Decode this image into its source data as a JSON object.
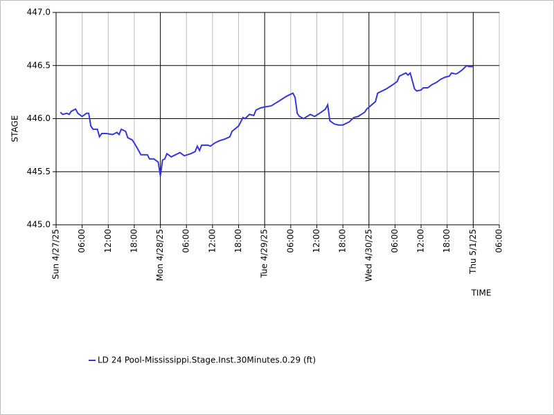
{
  "chart_data": {
    "type": "line",
    "y_label": "STAGE",
    "x_label": "TIME",
    "xlim": [
      "2025-04-27T00:00",
      "2025-05-01T06:00"
    ],
    "xticks": [
      {
        "value": "2025-04-27T00:00",
        "label": "Sun 4/27/25"
      },
      {
        "value": "2025-04-27T06:00",
        "label": "06:00"
      },
      {
        "value": "2025-04-27T12:00",
        "label": "12:00"
      },
      {
        "value": "2025-04-27T18:00",
        "label": "18:00"
      },
      {
        "value": "2025-04-28T00:00",
        "label": "Mon 4/28/25"
      },
      {
        "value": "2025-04-28T06:00",
        "label": "06:00"
      },
      {
        "value": "2025-04-28T12:00",
        "label": "12:00"
      },
      {
        "value": "2025-04-28T18:00",
        "label": "18:00"
      },
      {
        "value": "2025-04-29T00:00",
        "label": "Tue 4/29/25"
      },
      {
        "value": "2025-04-29T06:00",
        "label": "06:00"
      },
      {
        "value": "2025-04-29T12:00",
        "label": "12:00"
      },
      {
        "value": "2025-04-29T18:00",
        "label": "18:00"
      },
      {
        "value": "2025-04-30T00:00",
        "label": "Wed 4/30/25"
      },
      {
        "value": "2025-04-30T06:00",
        "label": "06:00"
      },
      {
        "value": "2025-04-30T12:00",
        "label": "12:00"
      },
      {
        "value": "2025-04-30T18:00",
        "label": "18:00"
      },
      {
        "value": "2025-05-01T00:00",
        "label": "Thu 5/1/25"
      },
      {
        "value": "2025-05-01T06:00",
        "label": "06:00"
      }
    ],
    "ylim": [
      445.0,
      447.0
    ],
    "yticks": [
      {
        "value": 445.0,
        "label": "445.0"
      },
      {
        "value": 445.5,
        "label": "445.5"
      },
      {
        "value": 446.0,
        "label": "446.0"
      },
      {
        "value": 446.5,
        "label": "446.5"
      },
      {
        "value": 447.0,
        "label": "447.0"
      }
    ],
    "grid": true,
    "x": [
      "2025-04-27T01:00",
      "2025-04-27T01:30",
      "2025-04-27T02:30",
      "2025-04-27T03:00",
      "2025-04-27T03:30",
      "2025-04-27T04:30",
      "2025-04-27T05:00",
      "2025-04-27T06:00",
      "2025-04-27T07:00",
      "2025-04-27T07:30",
      "2025-04-27T08:00",
      "2025-04-27T08:30",
      "2025-04-27T09:30",
      "2025-04-27T10:00",
      "2025-04-27T10:30",
      "2025-04-27T11:30",
      "2025-04-27T13:00",
      "2025-04-27T14:00",
      "2025-04-27T14:30",
      "2025-04-27T15:00",
      "2025-04-27T16:00",
      "2025-04-27T16:30",
      "2025-04-27T17:30",
      "2025-04-27T18:00",
      "2025-04-27T19:00",
      "2025-04-27T19:30",
      "2025-04-27T21:00",
      "2025-04-27T21:30",
      "2025-04-27T22:30",
      "2025-04-27T23:30",
      "2025-04-28T00:00",
      "2025-04-28T00:30",
      "2025-04-28T01:00",
      "2025-04-28T01:30",
      "2025-04-28T02:30",
      "2025-04-28T03:30",
      "2025-04-28T04:30",
      "2025-04-28T05:30",
      "2025-04-28T07:00",
      "2025-04-28T08:00",
      "2025-04-28T08:30",
      "2025-04-28T09:00",
      "2025-04-28T09:30",
      "2025-04-28T11:00",
      "2025-04-28T11:30",
      "2025-04-28T12:30",
      "2025-04-28T13:30",
      "2025-04-28T15:00",
      "2025-04-28T16:00",
      "2025-04-28T16:30",
      "2025-04-28T18:00",
      "2025-04-28T18:30",
      "2025-04-28T19:00",
      "2025-04-28T19:30",
      "2025-04-28T20:30",
      "2025-04-28T21:30",
      "2025-04-28T22:00",
      "2025-04-28T23:00",
      "2025-04-29T00:00",
      "2025-04-29T01:30",
      "2025-04-29T03:30",
      "2025-04-29T05:00",
      "2025-04-29T06:00",
      "2025-04-29T06:30",
      "2025-04-29T07:00",
      "2025-04-29T07:30",
      "2025-04-29T08:00",
      "2025-04-29T09:00",
      "2025-04-29T10:30",
      "2025-04-29T11:30",
      "2025-04-29T13:00",
      "2025-04-29T14:00",
      "2025-04-29T14:30",
      "2025-04-29T15:00",
      "2025-04-29T16:00",
      "2025-04-29T17:00",
      "2025-04-29T18:00",
      "2025-04-29T19:30",
      "2025-04-29T20:30",
      "2025-04-29T21:30",
      "2025-04-29T23:00",
      "2025-04-29T23:30",
      "2025-04-30T01:30",
      "2025-04-30T02:00",
      "2025-04-30T04:00",
      "2025-04-30T05:30",
      "2025-04-30T06:30",
      "2025-04-30T07:00",
      "2025-04-30T08:30",
      "2025-04-30T09:00",
      "2025-04-30T09:30",
      "2025-04-30T10:30",
      "2025-04-30T11:00",
      "2025-04-30T12:00",
      "2025-04-30T12:30",
      "2025-04-30T13:30",
      "2025-04-30T14:30",
      "2025-04-30T15:30",
      "2025-04-30T16:30",
      "2025-04-30T17:30",
      "2025-04-30T18:30",
      "2025-04-30T19:00",
      "2025-04-30T20:00",
      "2025-04-30T20:30",
      "2025-04-30T21:30",
      "2025-04-30T22:30",
      "2025-04-30T23:00",
      "2025-05-01T00:00"
    ],
    "series": [
      {
        "name": "LD 24 Pool-Mississippi.Stage.Inst.30Minutes.0.29 (ft)",
        "color": "#3535e0",
        "values": [
          446.06,
          446.04,
          446.05,
          446.04,
          446.07,
          446.09,
          446.05,
          446.02,
          446.05,
          446.05,
          445.93,
          445.9,
          445.9,
          445.83,
          445.86,
          445.86,
          445.85,
          445.87,
          445.85,
          445.9,
          445.88,
          445.82,
          445.8,
          445.77,
          445.7,
          445.66,
          445.66,
          445.62,
          445.62,
          445.59,
          445.46,
          445.61,
          445.62,
          445.67,
          445.64,
          445.66,
          445.68,
          445.65,
          445.67,
          445.69,
          445.74,
          445.7,
          445.75,
          445.75,
          445.74,
          445.77,
          445.79,
          445.81,
          445.83,
          445.88,
          445.93,
          445.97,
          446.01,
          446.0,
          446.04,
          446.03,
          446.08,
          446.1,
          446.11,
          446.12,
          446.17,
          446.21,
          446.23,
          446.24,
          446.2,
          446.05,
          446.02,
          446.0,
          446.04,
          446.02,
          446.06,
          446.09,
          446.13,
          445.98,
          445.95,
          445.94,
          445.94,
          445.97,
          446.01,
          446.02,
          446.06,
          446.09,
          446.16,
          446.24,
          446.28,
          446.32,
          446.35,
          446.4,
          446.43,
          446.41,
          446.43,
          446.28,
          446.26,
          446.27,
          446.29,
          446.29,
          446.32,
          446.34,
          446.37,
          446.39,
          446.4,
          446.43,
          446.42,
          446.43,
          446.46,
          446.5,
          446.49,
          446.49
        ]
      }
    ]
  }
}
